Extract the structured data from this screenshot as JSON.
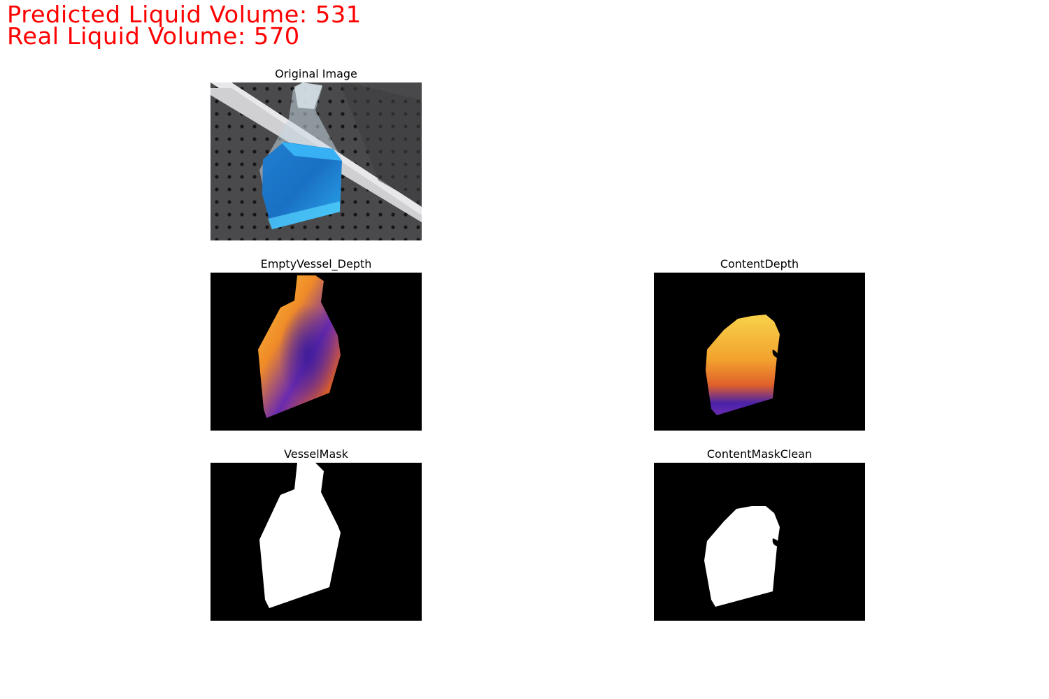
{
  "header": {
    "predicted_text": "Predicted Liquid Volume: 531",
    "real_text": "Real Liquid Volume: 570"
  },
  "panels": {
    "original": {
      "title": "Original Image"
    },
    "empty_vessel_depth": {
      "title": "EmptyVessel_Depth"
    },
    "content_depth": {
      "title": "ContentDepth"
    },
    "vessel_mask": {
      "title": "VesselMask"
    },
    "content_mask_clean": {
      "title": "ContentMaskClean"
    }
  },
  "colors": {
    "headline": "#ff0000",
    "liquid": "#1a8fe0",
    "depth_hot": "#f5c030",
    "depth_cold": "#3a1a9a"
  }
}
